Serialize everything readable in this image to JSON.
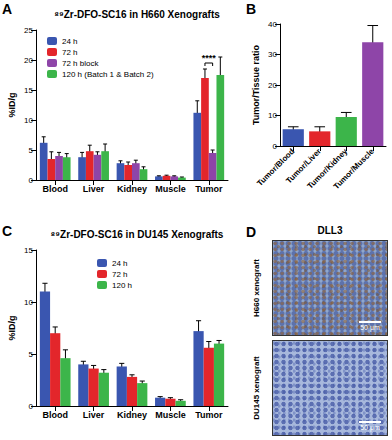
{
  "chart_data": [
    {
      "panel_label": "A",
      "type": "bar",
      "title": "⁸⁹Zr-DFO-SC16 in H660 Xenografts",
      "y_label": "%ID/g",
      "categories": [
        "Blood",
        "Liver",
        "Kidney",
        "Muscle",
        "Tumor"
      ],
      "series": [
        {
          "name": "24 h",
          "color": "#3a56b0",
          "values": [
            6.2,
            3.8,
            2.8,
            0.6,
            11.2
          ],
          "errors": [
            1.0,
            0.8,
            0.4,
            0.1,
            2.0
          ]
        },
        {
          "name": "72 h",
          "color": "#e3262b",
          "values": [
            3.5,
            4.8,
            2.5,
            0.7,
            17.0
          ],
          "errors": [
            1.2,
            1.0,
            0.5,
            0.1,
            1.5
          ]
        },
        {
          "name": "72 h block",
          "color": "#8e45a8",
          "values": [
            4.0,
            4.2,
            2.8,
            0.6,
            4.5
          ],
          "errors": [
            0.6,
            0.5,
            0.5,
            0.1,
            0.5
          ]
        },
        {
          "name": "120 h (Batch 1 & Batch 2)",
          "color": "#3cb54a",
          "values": [
            3.8,
            4.8,
            1.8,
            0.4,
            17.5
          ],
          "errors": [
            0.6,
            1.2,
            0.4,
            0.1,
            3.0
          ]
        }
      ],
      "ylim": [
        0,
        25
      ],
      "yticks": [
        0,
        5,
        10,
        15,
        20,
        25
      ],
      "grid": false,
      "legend": "upper left",
      "annotations": [
        {
          "text": "****",
          "category": "Tumor",
          "between": [
            "72 h",
            "72 h block"
          ]
        }
      ]
    },
    {
      "panel_label": "B",
      "type": "bar",
      "y_label": "Tumor/Tissue ratio",
      "categories": [
        "Tumor/Blood",
        "Tumor/Liver",
        "Tumor/Kidney",
        "Tumor/Muscle"
      ],
      "values": [
        5.5,
        4.8,
        9.5,
        34
      ],
      "errors": [
        0.8,
        1.5,
        1.5,
        5.5
      ],
      "colors": [
        "#3a56b0",
        "#e3262b",
        "#3cb54a",
        "#8e45a8"
      ],
      "ylim": [
        0,
        40
      ],
      "yticks": [
        0,
        10,
        20,
        30,
        40
      ],
      "grid": false
    },
    {
      "panel_label": "C",
      "type": "bar",
      "title": "⁸⁹Zr-DFO-SC16 in DU145 Xenografts",
      "y_label": "%ID/g",
      "categories": [
        "Blood",
        "Liver",
        "Kidney",
        "Muscle",
        "Tumor"
      ],
      "series": [
        {
          "name": "24 h",
          "color": "#3a56b0",
          "values": [
            11.0,
            4.0,
            3.8,
            0.8,
            7.2
          ],
          "errors": [
            0.8,
            0.3,
            0.3,
            0.1,
            1.0
          ]
        },
        {
          "name": "72 h",
          "color": "#e3262b",
          "values": [
            7.0,
            3.6,
            2.8,
            0.7,
            5.6
          ],
          "errors": [
            0.6,
            0.3,
            0.2,
            0.1,
            0.6
          ]
        },
        {
          "name": "120 h",
          "color": "#3cb54a",
          "values": [
            4.6,
            3.2,
            2.2,
            0.5,
            6.0
          ],
          "errors": [
            0.8,
            0.3,
            0.2,
            0.1,
            0.3
          ]
        }
      ],
      "ylim": [
        0,
        15
      ],
      "yticks": [
        0,
        5,
        10,
        15
      ],
      "grid": false,
      "legend": "upper center"
    }
  ],
  "image_panel": {
    "panel_label": "D",
    "title": "DLL3",
    "images": [
      {
        "label": "H660 xenograft",
        "scale_bar": "50 μm"
      },
      {
        "label": "DU145 xenograft",
        "scale_bar": "50 μm"
      }
    ]
  }
}
